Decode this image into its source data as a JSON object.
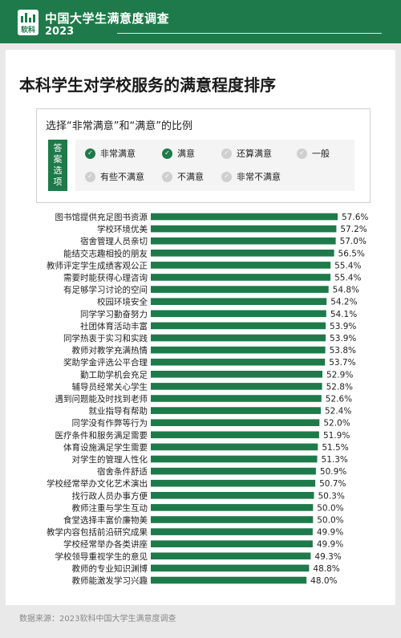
{
  "header": {
    "logo_text": "软科",
    "title": "中国大学生满意度调查",
    "year": "2023"
  },
  "main_title": "本科学生对学校服务的满意程度排序",
  "legend": {
    "title": "选择“非常满意”和“满意”的比例",
    "side_label": [
      "答",
      "案",
      "选",
      "项"
    ],
    "items": [
      {
        "label": "非常满意",
        "checked": true
      },
      {
        "label": "满意",
        "checked": true
      },
      {
        "label": "还算满意",
        "checked": false
      },
      {
        "label": "一般",
        "checked": false
      },
      {
        "label": "有些不满意",
        "checked": false
      },
      {
        "label": "不满意",
        "checked": false
      },
      {
        "label": "非常不满意",
        "checked": false
      }
    ]
  },
  "colors": {
    "brand": "#1e7a4a",
    "bar": "#1e7a4a",
    "check_on": "#1e7a4a",
    "check_off": "#cfcfcf"
  },
  "chart_data": {
    "type": "bar",
    "orientation": "horizontal",
    "unit": "%",
    "categories": [
      "图书馆提供充足图书资源",
      "学校环境优美",
      "宿舍管理人员亲切",
      "能结交志趣相投的朋友",
      "教师评定学生成绩客观公正",
      "需要时能获得心理咨询",
      "有足够学习讨论的空间",
      "校园环境安全",
      "同学学习勤奋努力",
      "社团体育活动丰富",
      "同学热衷于实习和实践",
      "教师对教学充满热情",
      "奖助学金评选公平合理",
      "勤工助学机会充足",
      "辅导员经常关心学生",
      "遇到问题能及时找到老师",
      "就业指导有帮助",
      "同学没有作弊等行为",
      "医疗条件和服务满足需要",
      "体育设施满足学生需要",
      "对学生的管理人性化",
      "宿舍条件舒适",
      "学校经常举办文化艺术演出",
      "找行政人员办事方便",
      "教师注重与学生互动",
      "食堂选择丰富价廉物美",
      "教学内容包括前沿研究成果",
      "学校经常举办各类讲座",
      "学校领导重视学生的意见",
      "教师的专业知识渊博",
      "教师能激发学习兴趣"
    ],
    "values": [
      57.6,
      57.2,
      57.0,
      56.5,
      55.4,
      55.4,
      54.8,
      54.2,
      54.1,
      53.9,
      53.9,
      53.8,
      53.7,
      52.9,
      52.8,
      52.6,
      52.4,
      52.0,
      51.9,
      51.5,
      51.3,
      50.9,
      50.7,
      50.3,
      50.0,
      50.0,
      49.9,
      49.9,
      49.3,
      48.8,
      48.0
    ],
    "labels": [
      "57.6%",
      "57.2%",
      "57.0%",
      "56.5%",
      "55.4%",
      "55.4%",
      "54.8%",
      "54.2%",
      "54.1%",
      "53.9%",
      "53.9%",
      "53.8%",
      "53.7%",
      "52.9%",
      "52.8%",
      "52.6%",
      "52.4%",
      "52.0%",
      "51.9%",
      "51.5%",
      "51.3%",
      "50.9%",
      "50.7%",
      "50.3%",
      "50.0%",
      "50.0%",
      "49.9%",
      "49.9%",
      "49.3%",
      "48.8%",
      "48.0%"
    ],
    "xlim": [
      0,
      57.6
    ]
  },
  "footer": "数据来源：2023软科中国大学生满意度调查"
}
